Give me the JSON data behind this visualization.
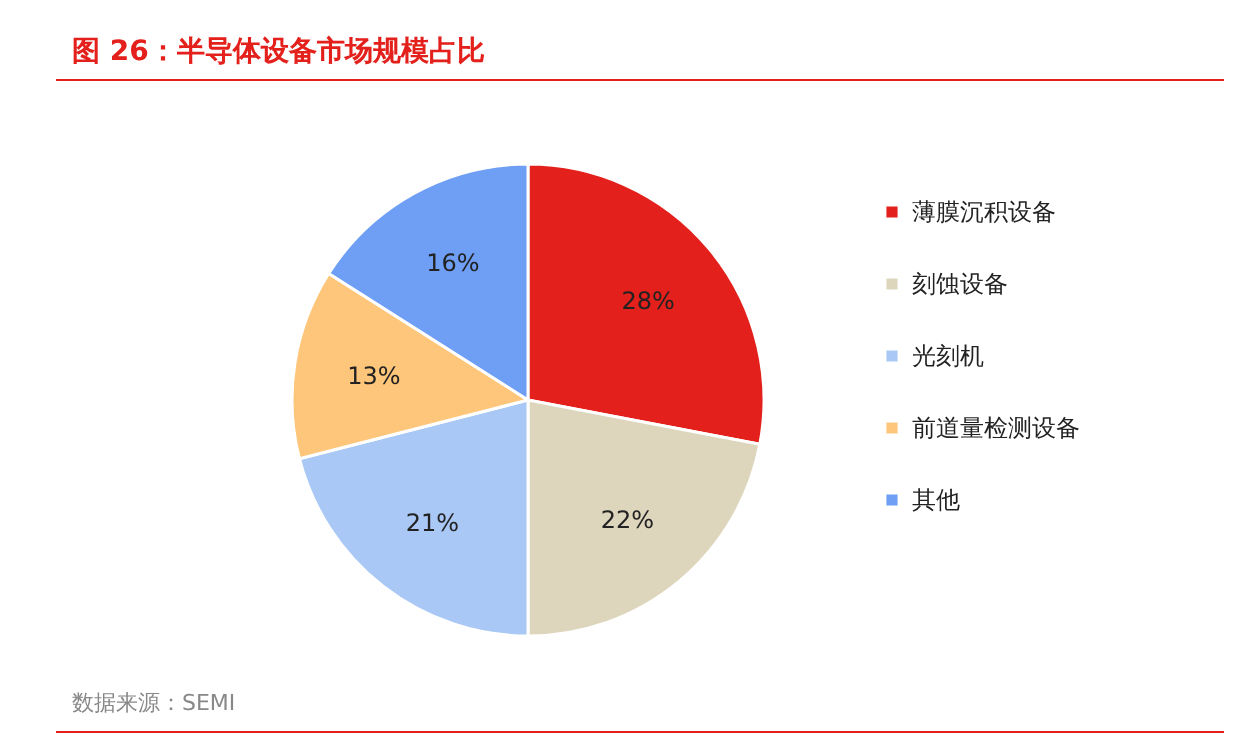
{
  "chart_data": {
    "type": "pie",
    "title": "图 26：半导体设备市场规模占比",
    "categories": [
      "薄膜沉积设备",
      "刻蚀设备",
      "光刻机",
      "前道量检测设备",
      "其他"
    ],
    "values": [
      28,
      22,
      21,
      13,
      16
    ],
    "colors": [
      "#e3201b",
      "#ded5bd",
      "#a9c8f5",
      "#fec67a",
      "#6f9ff5"
    ],
    "value_labels": [
      "28%",
      "22%",
      "21%",
      "13%",
      "16%"
    ],
    "legend": "right",
    "annotations": [
      "数据来源：SEMI"
    ]
  }
}
